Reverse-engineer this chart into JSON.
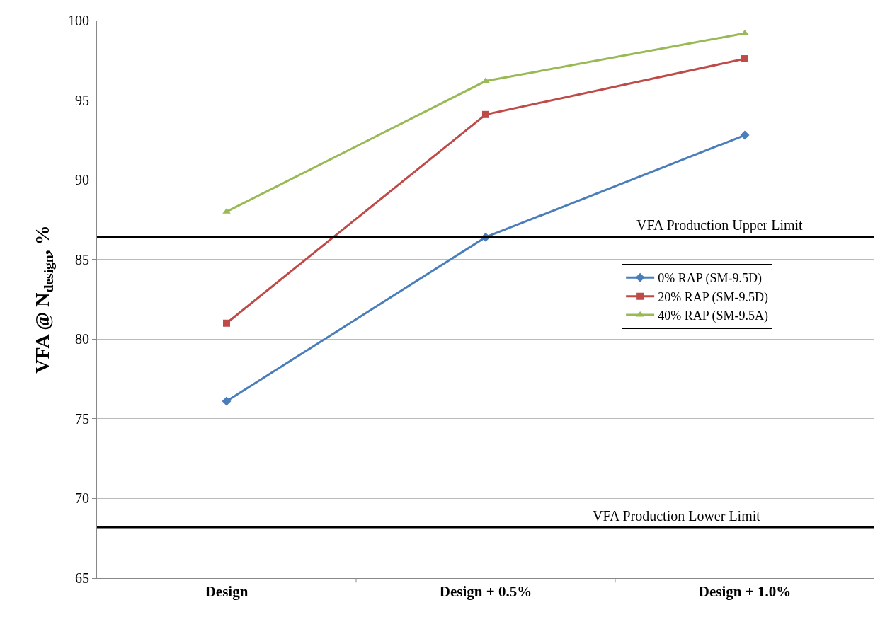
{
  "chart_data": {
    "type": "line",
    "ylabel": "VFA @ N$_{design}$, %",
    "categories": [
      "Design",
      "Design + 0.5%",
      "Design + 1.0%"
    ],
    "series": [
      {
        "name": "0% RAP (SM-9.5D)",
        "color": "#4a7ebb",
        "marker": "diamond",
        "values": [
          76.1,
          86.4,
          92.8
        ]
      },
      {
        "name": "20% RAP (SM-9.5D)",
        "color": "#be4b48",
        "marker": "square",
        "values": [
          81.0,
          94.1,
          97.6
        ]
      },
      {
        "name": "40% RAP (SM-9.5A)",
        "color": "#98b954",
        "marker": "triangle",
        "values": [
          88.0,
          96.2,
          99.2
        ]
      }
    ],
    "ylim": [
      65,
      100
    ],
    "yticks": [
      65,
      70,
      75,
      80,
      85,
      90,
      95,
      100
    ],
    "grid": "y",
    "legend": "right",
    "line_style": "solid",
    "ref_lines": [
      {
        "axis": "y",
        "value": 86.4,
        "label": "VFA Production Upper Limit",
        "color": "#000000"
      },
      {
        "axis": "y",
        "value": 68.2,
        "label": "VFA Production Lower Limit",
        "color": "#000000"
      }
    ]
  }
}
